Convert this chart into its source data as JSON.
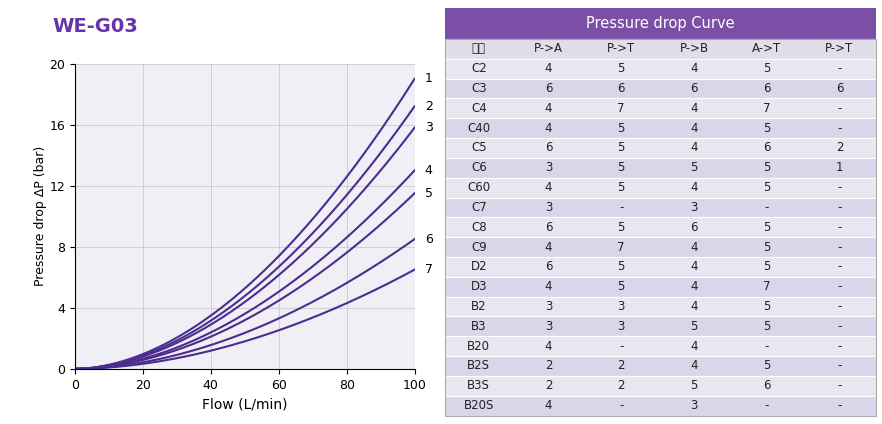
{
  "title": "WE-G03",
  "title_color": "#6633aa",
  "xlabel": "Flow (L/min)",
  "ylabel": "Pressure drop ΔP (bar)",
  "xlim": [
    0,
    100
  ],
  "ylim": [
    0,
    20
  ],
  "xticks": [
    0,
    20,
    40,
    60,
    80,
    100
  ],
  "yticks": [
    0,
    4,
    8,
    12,
    16,
    20
  ],
  "curve_color": "#4b2d8f",
  "curve_exponent": 1.85,
  "curve_end_values": [
    19.0,
    17.2,
    15.8,
    13.0,
    11.5,
    8.5,
    6.5
  ],
  "curve_labels": [
    "1",
    "2",
    "3",
    "4",
    "5",
    "6",
    "7"
  ],
  "table_title": "Pressure drop Curve",
  "table_title_bg": "#7b4fa6",
  "table_title_color": "#ffffff",
  "col_headers": [
    "型式",
    "P->A",
    "P->T",
    "P->B",
    "A->T",
    "P->T"
  ],
  "rows": [
    [
      "C2",
      "4",
      "5",
      "4",
      "5",
      "-"
    ],
    [
      "C3",
      "6",
      "6",
      "6",
      "6",
      "6"
    ],
    [
      "C4",
      "4",
      "7",
      "4",
      "7",
      "-"
    ],
    [
      "C40",
      "4",
      "5",
      "4",
      "5",
      "-"
    ],
    [
      "C5",
      "6",
      "5",
      "4",
      "6",
      "2"
    ],
    [
      "C6",
      "3",
      "5",
      "5",
      "5",
      "1"
    ],
    [
      "C60",
      "4",
      "5",
      "4",
      "5",
      "-"
    ],
    [
      "C7",
      "3",
      "-",
      "3",
      "-",
      "-"
    ],
    [
      "C8",
      "6",
      "5",
      "6",
      "5",
      "-"
    ],
    [
      "C9",
      "4",
      "7",
      "4",
      "5",
      "-"
    ],
    [
      "D2",
      "6",
      "5",
      "4",
      "5",
      "-"
    ],
    [
      "D3",
      "4",
      "5",
      "4",
      "7",
      "-"
    ],
    [
      "B2",
      "3",
      "3",
      "4",
      "5",
      "-"
    ],
    [
      "B3",
      "3",
      "3",
      "5",
      "5",
      "-"
    ],
    [
      "B20",
      "4",
      "-",
      "4",
      "-",
      "-"
    ],
    [
      "B2S",
      "2",
      "2",
      "4",
      "5",
      "-"
    ],
    [
      "B3S",
      "2",
      "2",
      "5",
      "6",
      "-"
    ],
    [
      "B20S",
      "4",
      "-",
      "3",
      "-",
      "-"
    ]
  ],
  "row_colors": [
    "#e8e6f0",
    "#d8d6e8",
    "#e8e6f0",
    "#d8d6e8",
    "#e8e6f0",
    "#d8d6e8",
    "#e8e6f0",
    "#d8d6e8",
    "#e8e6f0",
    "#d8d6e8",
    "#e8e6f0",
    "#d8d6e8",
    "#e8e6f0",
    "#d8d6e8",
    "#e8e6f0",
    "#d8d6e8",
    "#e8e6f0",
    "#d8d6e8"
  ],
  "header_bg": "#e0dee8",
  "grid_color": "#cccccc",
  "chart_bg": "#f0eff5",
  "fig_bg": "#ffffff",
  "col_widths": [
    0.155,
    0.169,
    0.169,
    0.169,
    0.169,
    0.169
  ]
}
